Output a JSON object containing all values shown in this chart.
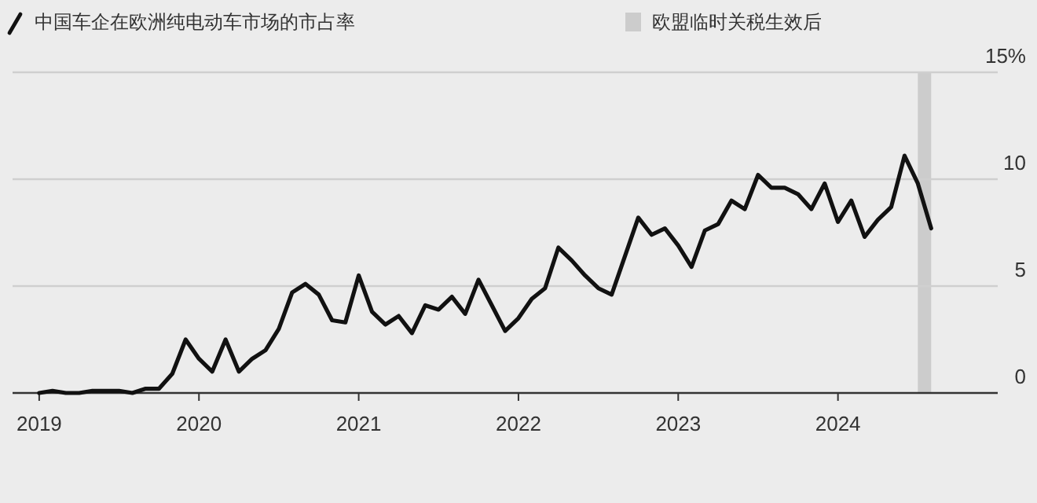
{
  "chart_data": {
    "type": "line",
    "x": [
      "2019-01",
      "2019-02",
      "2019-03",
      "2019-04",
      "2019-05",
      "2019-06",
      "2019-07",
      "2019-08",
      "2019-09",
      "2019-10",
      "2019-11",
      "2019-12",
      "2020-01",
      "2020-02",
      "2020-03",
      "2020-04",
      "2020-05",
      "2020-06",
      "2020-07",
      "2020-08",
      "2020-09",
      "2020-10",
      "2020-11",
      "2020-12",
      "2021-01",
      "2021-02",
      "2021-03",
      "2021-04",
      "2021-05",
      "2021-06",
      "2021-07",
      "2021-08",
      "2021-09",
      "2021-10",
      "2021-11",
      "2021-12",
      "2022-01",
      "2022-02",
      "2022-03",
      "2022-04",
      "2022-05",
      "2022-06",
      "2022-07",
      "2022-08",
      "2022-09",
      "2022-10",
      "2022-11",
      "2022-12",
      "2023-01",
      "2023-02",
      "2023-03",
      "2023-04",
      "2023-05",
      "2023-06",
      "2023-07",
      "2023-08",
      "2023-09",
      "2023-10",
      "2023-11",
      "2023-12",
      "2024-01",
      "2024-02",
      "2024-03",
      "2024-04",
      "2024-05",
      "2024-06",
      "2024-07",
      "2024-08"
    ],
    "series": [
      {
        "name": "中国车企在欧洲纯电动车市场的市占率",
        "color": "#111111",
        "values": [
          0,
          0.1,
          0,
          0,
          0.1,
          0.1,
          0.1,
          0,
          0.2,
          0.2,
          0.9,
          2.5,
          1.6,
          1.0,
          2.5,
          1.0,
          1.6,
          2.0,
          3.0,
          4.7,
          5.1,
          4.6,
          3.4,
          3.3,
          5.5,
          3.8,
          3.2,
          3.6,
          2.8,
          4.1,
          3.9,
          4.5,
          3.7,
          5.3,
          4.1,
          2.9,
          3.5,
          4.4,
          4.9,
          6.8,
          6.2,
          5.5,
          4.9,
          4.6,
          6.4,
          8.2,
          7.4,
          7.7,
          6.9,
          5.9,
          7.6,
          7.9,
          9.0,
          8.6,
          10.2,
          9.6,
          9.6,
          9.3,
          8.6,
          9.8,
          8.0,
          9.0,
          7.3,
          8.1,
          8.7,
          11.1,
          9.8,
          7.7
        ]
      }
    ],
    "xlim": [
      "2018-11",
      "2025-01"
    ],
    "ylim": [
      0,
      15
    ],
    "xticks": [
      "2019",
      "2020",
      "2021",
      "2022",
      "2023",
      "2024"
    ],
    "yticks": [
      0,
      5,
      10,
      {
        "value": 15,
        "label": "15%"
      }
    ],
    "grid": "y",
    "legend": "top",
    "marker": "none",
    "line_style": "solid",
    "bands": [
      {
        "axis": "x",
        "from": "2024-07",
        "to": "2024-08",
        "label": "欧盟临时关税生效后",
        "color": "#cccccc"
      }
    ]
  }
}
